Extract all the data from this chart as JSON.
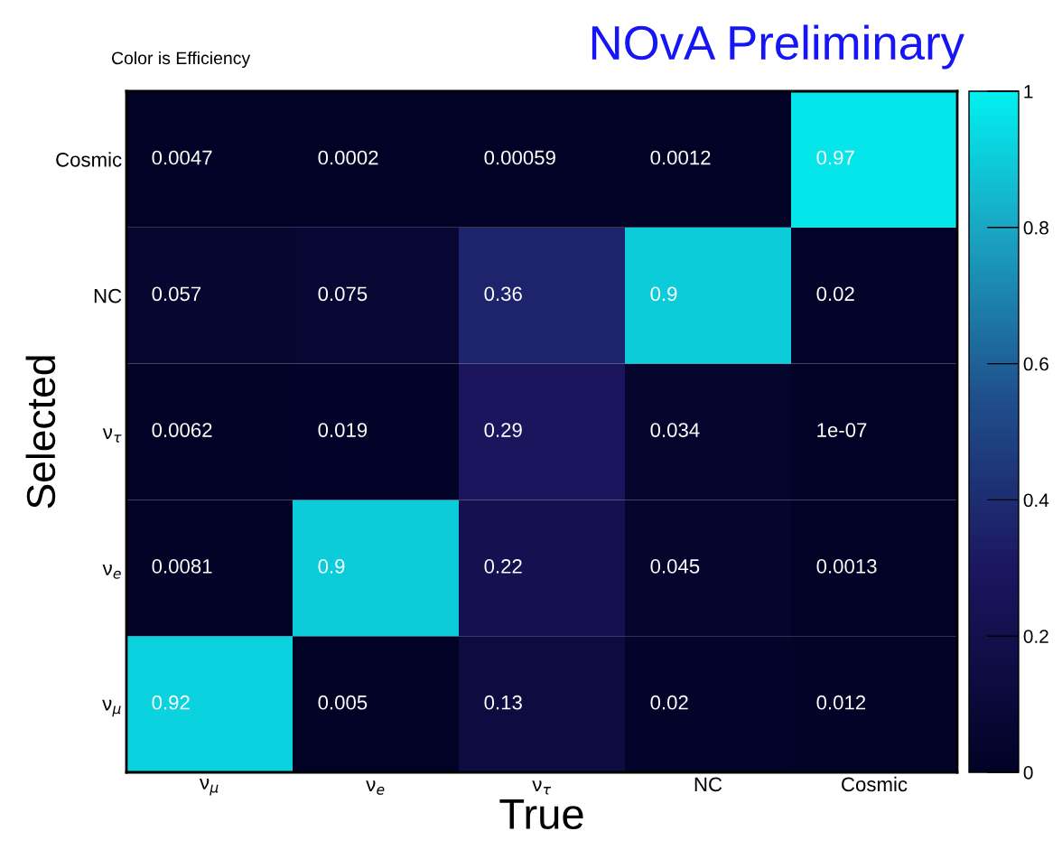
{
  "chart_data": {
    "type": "heatmap",
    "title": "NOvA Preliminary",
    "subtitle": "Color is Efficiency",
    "xlabel": "True",
    "ylabel": "Selected",
    "categories": [
      "ν$_{μ}$",
      "ν$_{e}$",
      "ν$_{τ}$",
      "NC",
      "Cosmic"
    ],
    "y_categories": [
      "Cosmic",
      "NC",
      "ν$_{τ}$",
      "ν$_{e}$",
      "ν$_{μ}$"
    ],
    "cells": [
      [
        0.0047,
        0.0002,
        0.00059,
        0.0012,
        0.97
      ],
      [
        0.057,
        0.075,
        0.36,
        0.9,
        0.02
      ],
      [
        0.0062,
        0.019,
        0.29,
        0.034,
        1e-07
      ],
      [
        0.0081,
        0.9,
        0.22,
        0.045,
        0.0013
      ],
      [
        0.92,
        0.005,
        0.13,
        0.02,
        0.012
      ]
    ],
    "clim": [
      0,
      1
    ],
    "cticks": [
      0,
      0.2,
      0.4,
      0.6,
      0.8,
      1
    ],
    "data_labels": true
  }
}
